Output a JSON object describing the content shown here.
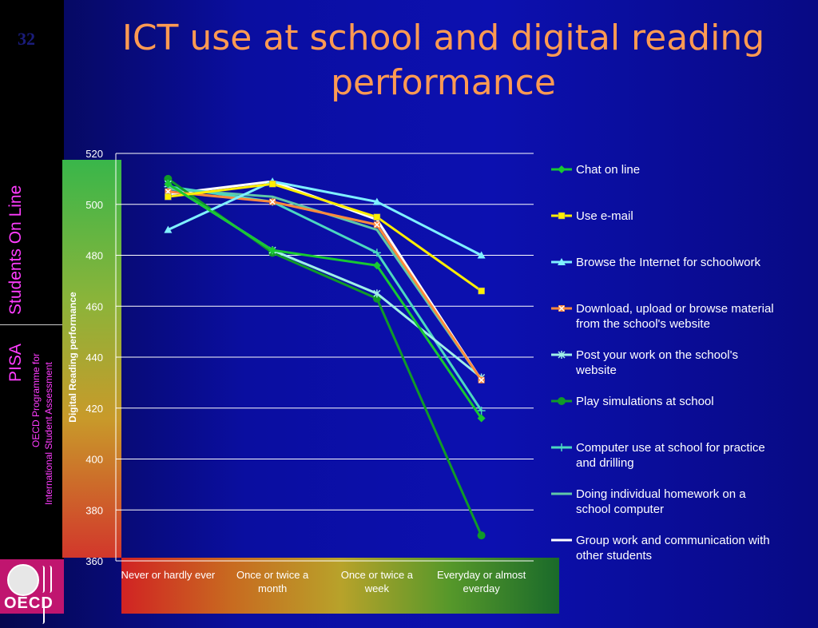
{
  "slide_number": "32",
  "sidebar": {
    "students_online": "Students On Line",
    "pisa": "PISA",
    "programme_line1": "OECD Programme for",
    "programme_line2": "International Student Assessment",
    "logo_text": "OECD"
  },
  "colors": {
    "chat": "#18c832",
    "email": "#ffee00",
    "browse": "#7ff0ff",
    "download": "#ff8a3c",
    "post": "#9ff0e8",
    "simulations": "#109a28",
    "practice": "#4cd8c0",
    "homework": "#60c8a8",
    "groupwork": "#ffffff"
  },
  "chart_data": {
    "type": "line",
    "title": "ICT use at school and digital reading performance",
    "ylabel": "Digital Reading performance",
    "xlabel": "",
    "ylim": [
      360,
      520
    ],
    "yticks": [
      360,
      380,
      400,
      420,
      440,
      460,
      480,
      500,
      520
    ],
    "grid": true,
    "legend_position": "right",
    "categories": [
      [
        "Never or hardly ever"
      ],
      [
        "Once or twice a",
        "month"
      ],
      [
        "Once or twice a",
        "week"
      ],
      [
        "Everyday or almost",
        "everday"
      ]
    ],
    "series": [
      {
        "name": [
          "Chat on line"
        ],
        "values": [
          508,
          482,
          476,
          416
        ],
        "color_key": "chat",
        "marker": "diamond"
      },
      {
        "name": [
          "Use e-mail"
        ],
        "values": [
          503,
          508,
          495,
          466
        ],
        "color_key": "email",
        "marker": "square"
      },
      {
        "name": [
          "Browse the Internet for schoolwork"
        ],
        "values": [
          490,
          509,
          501,
          480
        ],
        "color_key": "browse",
        "marker": "triangle"
      },
      {
        "name": [
          "Download, upload or browse material",
          "from the school's website"
        ],
        "values": [
          505,
          501,
          492,
          431
        ],
        "color_key": "download",
        "marker": "x"
      },
      {
        "name": [
          "Post your work on the school's",
          "website"
        ],
        "values": [
          508,
          482,
          465,
          432
        ],
        "color_key": "post",
        "marker": "star"
      },
      {
        "name": [
          "Play simulations at school"
        ],
        "values": [
          510,
          481,
          463,
          370
        ],
        "color_key": "simulations",
        "marker": "circle"
      },
      {
        "name": [
          "Computer use at school for practice",
          "and drilling"
        ],
        "values": [
          507,
          501,
          481,
          419
        ],
        "color_key": "practice",
        "marker": "plus"
      },
      {
        "name": [
          "Doing individual homework on a",
          "school computer"
        ],
        "values": [
          506,
          503,
          490,
          431
        ],
        "color_key": "homework",
        "marker": "none"
      },
      {
        "name": [
          "Group work and communication with",
          "other students"
        ],
        "values": [
          504,
          509,
          494,
          431
        ],
        "color_key": "groupwork",
        "marker": "none"
      }
    ]
  }
}
